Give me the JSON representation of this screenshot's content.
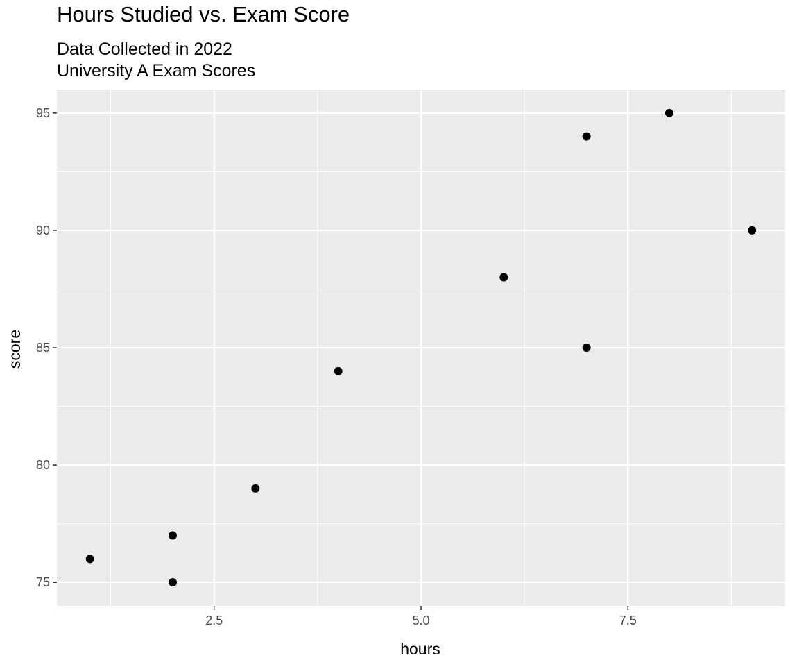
{
  "chart_data": {
    "type": "scatter",
    "title": "Hours Studied vs. Exam Score",
    "subtitle": [
      "Data Collected in 2022",
      "University A Exam Scores"
    ],
    "xlabel": "hours",
    "ylabel": "score",
    "xlim": [
      0.6,
      9.4
    ],
    "ylim": [
      74,
      96
    ],
    "x_ticks": [
      2.5,
      5.0,
      7.5
    ],
    "x_tick_labels": [
      "2.5",
      "5.0",
      "7.5"
    ],
    "y_ticks": [
      75,
      80,
      85,
      90,
      95
    ],
    "y_tick_labels": [
      "75",
      "80",
      "85",
      "90",
      "95"
    ],
    "grid": true,
    "legend": "none",
    "point_color": "#000000",
    "panel_background": "#ebebeb",
    "grid_color": "#ffffff",
    "points": [
      {
        "x": 1,
        "y": 76
      },
      {
        "x": 2,
        "y": 75
      },
      {
        "x": 2,
        "y": 77
      },
      {
        "x": 3,
        "y": 79
      },
      {
        "x": 4,
        "y": 84
      },
      {
        "x": 6,
        "y": 88
      },
      {
        "x": 7,
        "y": 85
      },
      {
        "x": 7,
        "y": 94
      },
      {
        "x": 8,
        "y": 95
      },
      {
        "x": 9,
        "y": 90
      }
    ]
  }
}
